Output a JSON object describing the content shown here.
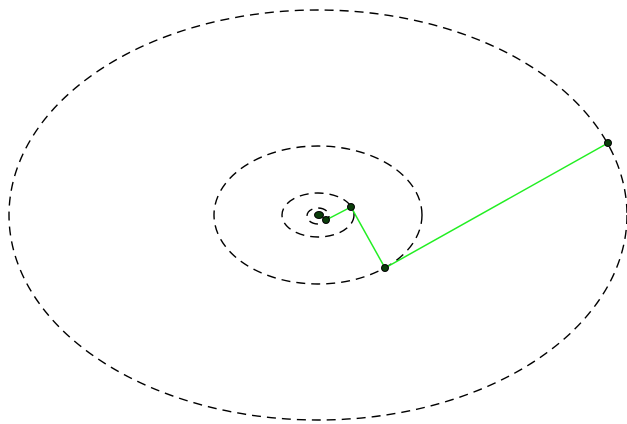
{
  "diagram": {
    "description_free": true,
    "colors": {
      "orbit": "#000000",
      "path": "#22ee22",
      "node": "#0b3d0b",
      "background": "#ffffff"
    },
    "orbits": [
      {
        "name": "orbit-1"
      },
      {
        "name": "orbit-2"
      },
      {
        "name": "orbit-3"
      },
      {
        "name": "orbit-4"
      }
    ],
    "nodes": [
      {
        "name": "node-center"
      },
      {
        "name": "node-1"
      },
      {
        "name": "node-2"
      },
      {
        "name": "node-3"
      },
      {
        "name": "node-4"
      }
    ],
    "path_order": [
      "node-1",
      "node-2",
      "node-3",
      "node-4"
    ]
  }
}
